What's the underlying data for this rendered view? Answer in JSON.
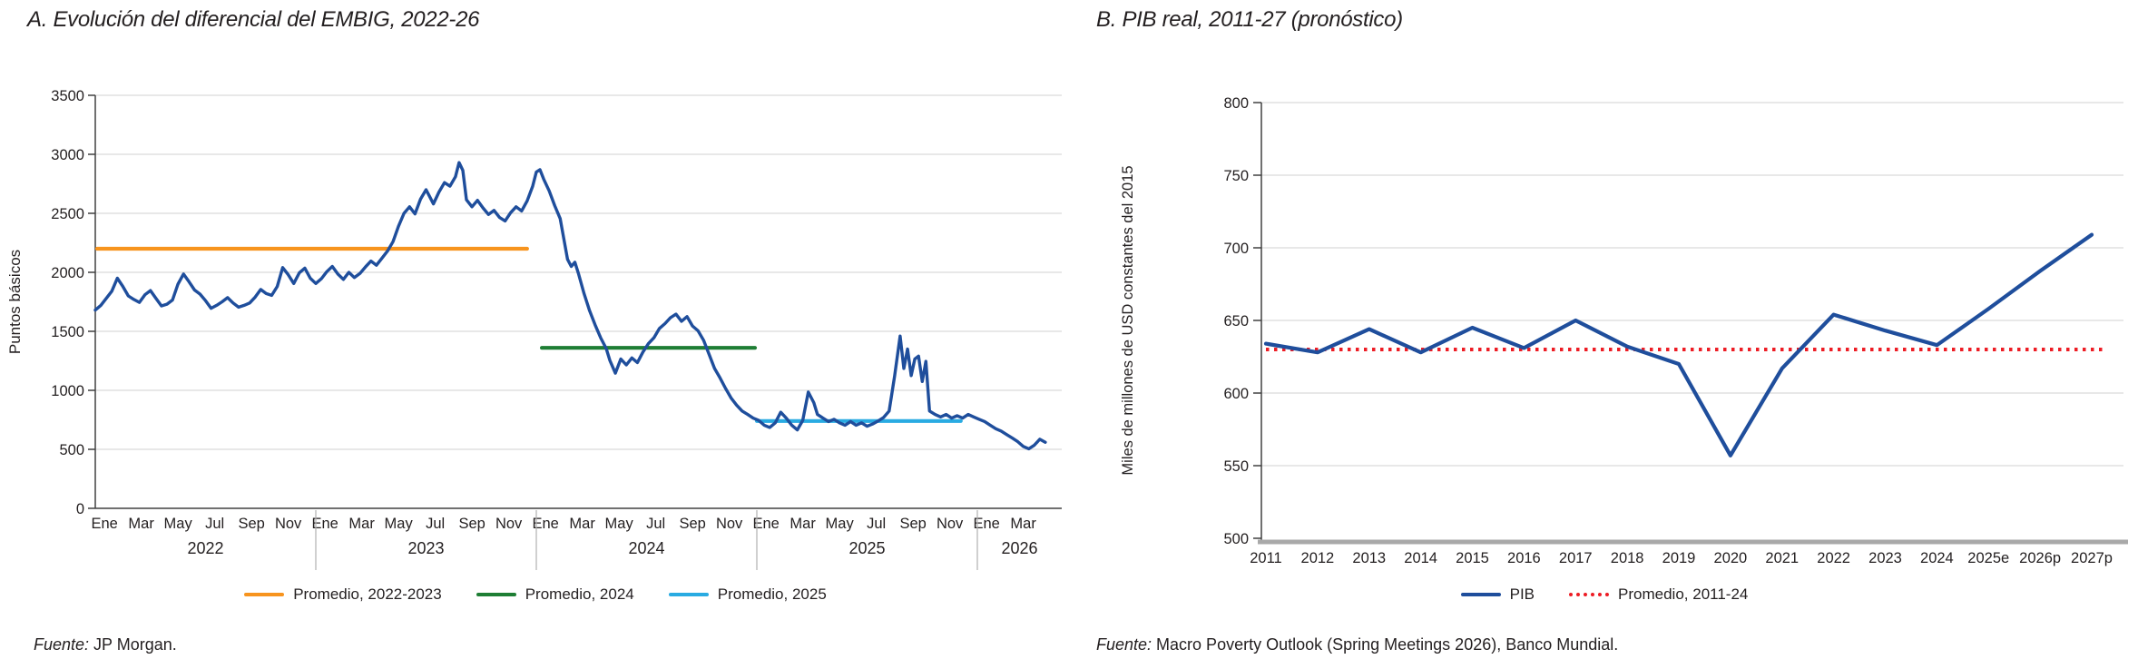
{
  "panel_a": {
    "title": "A. Evolución del diferencial del EMBIG, 2022-26",
    "fuente_label": "Fuente:",
    "fuente_text": " JP Morgan.",
    "legend": [
      {
        "label": "Promedio, 2022-2023",
        "color": "#F7941E"
      },
      {
        "label": "Promedio, 2024",
        "color": "#1E7E34"
      },
      {
        "label": "Promedio, 2025",
        "color": "#29ABE2"
      }
    ]
  },
  "panel_b": {
    "title": "B. PIB real, 2011-27 (pronóstico)",
    "fuente_label": "Fuente:",
    "fuente_text": " Macro Poverty Outlook (Spring Meetings 2026), Banco Mundial.",
    "legend": [
      {
        "label": "PIB",
        "color": "#1F4E9C"
      },
      {
        "label": "Promedio, 2011-24",
        "color": "#ED1C24"
      }
    ]
  },
  "chart_data": [
    {
      "type": "line",
      "title": "A. Evolución del diferencial del EMBIG, 2022-26",
      "ylabel": "Puntos básicos",
      "ylim": [
        0,
        3500
      ],
      "ytick_step": 500,
      "grid": true,
      "line_color": "#1F4E9C",
      "x_unit": "months since Jan 2022",
      "month_tick_labels": [
        "Ene",
        "Mar",
        "May",
        "Jul",
        "Sep",
        "Nov"
      ],
      "years": [
        {
          "label": "2022",
          "month_labels": [
            "Ene",
            "Mar",
            "May",
            "Jul",
            "Sep",
            "Nov"
          ]
        },
        {
          "label": "2023",
          "month_labels": [
            "Ene",
            "Mar",
            "May",
            "Jul",
            "Sep",
            "Nov"
          ]
        },
        {
          "label": "2024",
          "month_labels": [
            "Ene",
            "Mar",
            "May",
            "Jul",
            "Sep",
            "Nov"
          ]
        },
        {
          "label": "2025",
          "month_labels": [
            "Ene",
            "Mar",
            "May",
            "Jul",
            "Sep",
            "Nov"
          ]
        },
        {
          "label": "2026",
          "month_labels": [
            "Ene",
            "Mar"
          ]
        }
      ],
      "series_name": "EMBIG",
      "series": [
        [
          0,
          1680
        ],
        [
          0.3,
          1720
        ],
        [
          0.6,
          1780
        ],
        [
          0.9,
          1840
        ],
        [
          1.2,
          1950
        ],
        [
          1.5,
          1880
        ],
        [
          1.8,
          1800
        ],
        [
          2.1,
          1770
        ],
        [
          2.4,
          1745
        ],
        [
          2.7,
          1810
        ],
        [
          3.0,
          1845
        ],
        [
          3.3,
          1780
        ],
        [
          3.6,
          1715
        ],
        [
          3.9,
          1730
        ],
        [
          4.2,
          1765
        ],
        [
          4.5,
          1900
        ],
        [
          4.8,
          1985
        ],
        [
          5.1,
          1920
        ],
        [
          5.4,
          1850
        ],
        [
          5.7,
          1815
        ],
        [
          6.0,
          1760
        ],
        [
          6.3,
          1695
        ],
        [
          6.6,
          1720
        ],
        [
          6.9,
          1750
        ],
        [
          7.2,
          1785
        ],
        [
          7.5,
          1740
        ],
        [
          7.8,
          1705
        ],
        [
          8.1,
          1720
        ],
        [
          8.4,
          1740
        ],
        [
          8.7,
          1790
        ],
        [
          9.0,
          1855
        ],
        [
          9.3,
          1820
        ],
        [
          9.6,
          1805
        ],
        [
          9.9,
          1880
        ],
        [
          10.2,
          2040
        ],
        [
          10.5,
          1980
        ],
        [
          10.8,
          1905
        ],
        [
          11.1,
          1995
        ],
        [
          11.4,
          2035
        ],
        [
          11.7,
          1950
        ],
        [
          12.0,
          1905
        ],
        [
          12.3,
          1945
        ],
        [
          12.6,
          2005
        ],
        [
          12.9,
          2050
        ],
        [
          13.2,
          1985
        ],
        [
          13.5,
          1940
        ],
        [
          13.8,
          2000
        ],
        [
          14.1,
          1955
        ],
        [
          14.4,
          1990
        ],
        [
          14.7,
          2045
        ],
        [
          15.0,
          2095
        ],
        [
          15.3,
          2060
        ],
        [
          15.6,
          2120
        ],
        [
          15.9,
          2180
        ],
        [
          16.2,
          2260
        ],
        [
          16.5,
          2390
        ],
        [
          16.8,
          2500
        ],
        [
          17.1,
          2555
        ],
        [
          17.4,
          2495
        ],
        [
          17.7,
          2620
        ],
        [
          18.0,
          2700
        ],
        [
          18.2,
          2640
        ],
        [
          18.4,
          2580
        ],
        [
          18.7,
          2680
        ],
        [
          19.0,
          2760
        ],
        [
          19.3,
          2730
        ],
        [
          19.6,
          2810
        ],
        [
          19.8,
          2930
        ],
        [
          20.0,
          2865
        ],
        [
          20.2,
          2615
        ],
        [
          20.5,
          2555
        ],
        [
          20.8,
          2610
        ],
        [
          21.1,
          2545
        ],
        [
          21.4,
          2490
        ],
        [
          21.7,
          2525
        ],
        [
          22.0,
          2465
        ],
        [
          22.3,
          2435
        ],
        [
          22.6,
          2505
        ],
        [
          22.9,
          2555
        ],
        [
          23.2,
          2520
        ],
        [
          23.5,
          2605
        ],
        [
          23.8,
          2730
        ],
        [
          24.0,
          2850
        ],
        [
          24.2,
          2870
        ],
        [
          24.4,
          2790
        ],
        [
          24.7,
          2690
        ],
        [
          25.0,
          2565
        ],
        [
          25.3,
          2455
        ],
        [
          25.5,
          2280
        ],
        [
          25.7,
          2110
        ],
        [
          25.9,
          2050
        ],
        [
          26.1,
          2085
        ],
        [
          26.3,
          1985
        ],
        [
          26.6,
          1820
        ],
        [
          26.9,
          1675
        ],
        [
          27.2,
          1555
        ],
        [
          27.5,
          1445
        ],
        [
          27.8,
          1355
        ],
        [
          28.0,
          1255
        ],
        [
          28.3,
          1145
        ],
        [
          28.6,
          1265
        ],
        [
          28.9,
          1215
        ],
        [
          29.2,
          1275
        ],
        [
          29.5,
          1235
        ],
        [
          29.8,
          1325
        ],
        [
          30.1,
          1395
        ],
        [
          30.4,
          1445
        ],
        [
          30.7,
          1525
        ],
        [
          31.0,
          1565
        ],
        [
          31.3,
          1615
        ],
        [
          31.6,
          1645
        ],
        [
          31.9,
          1585
        ],
        [
          32.2,
          1625
        ],
        [
          32.5,
          1545
        ],
        [
          32.8,
          1505
        ],
        [
          33.1,
          1425
        ],
        [
          33.4,
          1305
        ],
        [
          33.7,
          1185
        ],
        [
          34.0,
          1105
        ],
        [
          34.3,
          1015
        ],
        [
          34.6,
          935
        ],
        [
          34.9,
          875
        ],
        [
          35.2,
          825
        ],
        [
          35.5,
          795
        ],
        [
          35.8,
          765
        ],
        [
          36.1,
          745
        ],
        [
          36.4,
          705
        ],
        [
          36.7,
          685
        ],
        [
          37.0,
          725
        ],
        [
          37.3,
          815
        ],
        [
          37.6,
          765
        ],
        [
          37.9,
          705
        ],
        [
          38.2,
          665
        ],
        [
          38.5,
          745
        ],
        [
          38.8,
          985
        ],
        [
          39.1,
          895
        ],
        [
          39.3,
          795
        ],
        [
          39.6,
          765
        ],
        [
          39.9,
          735
        ],
        [
          40.2,
          755
        ],
        [
          40.5,
          725
        ],
        [
          40.8,
          705
        ],
        [
          41.1,
          735
        ],
        [
          41.4,
          705
        ],
        [
          41.7,
          725
        ],
        [
          42.0,
          695
        ],
        [
          42.3,
          715
        ],
        [
          42.6,
          740
        ],
        [
          42.9,
          770
        ],
        [
          43.2,
          825
        ],
        [
          43.5,
          1125
        ],
        [
          43.8,
          1460
        ],
        [
          44.0,
          1185
        ],
        [
          44.2,
          1350
        ],
        [
          44.4,
          1125
        ],
        [
          44.6,
          1265
        ],
        [
          44.8,
          1290
        ],
        [
          45.0,
          1075
        ],
        [
          45.2,
          1245
        ],
        [
          45.4,
          825
        ],
        [
          45.7,
          795
        ],
        [
          46.0,
          775
        ],
        [
          46.3,
          795
        ],
        [
          46.6,
          765
        ],
        [
          46.9,
          785
        ],
        [
          47.2,
          765
        ],
        [
          47.5,
          795
        ],
        [
          47.8,
          775
        ],
        [
          48.1,
          755
        ],
        [
          48.4,
          735
        ],
        [
          48.7,
          705
        ],
        [
          49.0,
          675
        ],
        [
          49.3,
          655
        ],
        [
          49.6,
          625
        ],
        [
          49.9,
          595
        ],
        [
          50.2,
          565
        ],
        [
          50.5,
          525
        ],
        [
          50.8,
          505
        ],
        [
          51.1,
          535
        ],
        [
          51.4,
          585
        ],
        [
          51.7,
          560
        ]
      ],
      "average_lines": [
        {
          "label": "Promedio, 2022-2023",
          "value": 2200,
          "span_months": [
            0.1,
            23.5
          ],
          "color": "#F7941E"
        },
        {
          "label": "Promedio, 2024",
          "value": 1360,
          "span_months": [
            24.3,
            35.9
          ],
          "color": "#1E7E34"
        },
        {
          "label": "Promedio, 2025",
          "value": 740,
          "span_months": [
            36.0,
            47.1
          ],
          "color": "#29ABE2"
        }
      ]
    },
    {
      "type": "line",
      "title": "B. PIB real, 2011-27 (pronóstico)",
      "ylabel": "Miles de millones de USD constantes del 2015",
      "ylim": [
        500,
        800
      ],
      "ytick_step": 50,
      "grid": true,
      "categories": [
        "2011",
        "2012",
        "2013",
        "2014",
        "2015",
        "2016",
        "2017",
        "2018",
        "2019",
        "2020",
        "2021",
        "2022",
        "2023",
        "2024",
        "2025e",
        "2026p",
        "2027p"
      ],
      "series": [
        {
          "name": "PIB",
          "color": "#1F4E9C",
          "style": "solid",
          "values": [
            634,
            628,
            644,
            628,
            645,
            631,
            650,
            632,
            620,
            557,
            617,
            654,
            643,
            633,
            658,
            684,
            709
          ]
        },
        {
          "name": "Promedio, 2011-24",
          "color": "#ED1C24",
          "style": "dotted",
          "value": 630
        }
      ],
      "legend_position": "bottom"
    }
  ]
}
